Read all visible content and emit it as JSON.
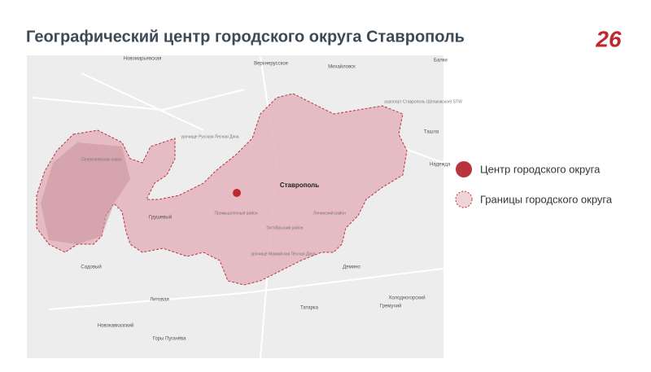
{
  "header": {
    "title": "Географический центр городского округа Ставрополь",
    "logo": "26"
  },
  "legend": {
    "items": [
      {
        "label": "Центр городского округа"
      },
      {
        "label": "Границы городского округа"
      }
    ]
  },
  "map": {
    "labels": [
      "Ставрополь",
      "Михайловск",
      "Новомарьевская",
      "Верхнерусское",
      "Татарка",
      "Демино",
      "Садовый",
      "Грушевый",
      "Холодногорский",
      "Гремучий",
      "Новокавказский",
      "Горы Пугачёва",
      "Липовая",
      "Ташла",
      "Надежда",
      "аэропорт Ставрополь (Шпаковское) STW",
      "Сенгилеевское озеро",
      "урочище Русская Лесная Дача",
      "урочище Мамайская Лесная Дача",
      "Промышленный район",
      "Ленинский район",
      "Октябрьский район",
      "Балки"
    ]
  }
}
